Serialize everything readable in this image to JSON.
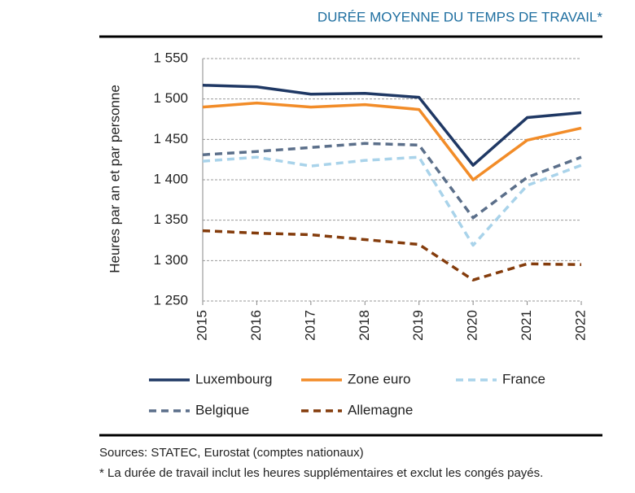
{
  "chart_data": {
    "type": "line",
    "title": "DURÉE MOYENNE DU TEMPS DE TRAVAIL*",
    "y_label": "Heures par an et par personne",
    "categories": [
      "2015",
      "2016",
      "2017",
      "2018",
      "2019",
      "2020",
      "2021",
      "2022"
    ],
    "ylim": [
      1250,
      1550
    ],
    "yticks": [
      {
        "value": 1250,
        "label": "1 250"
      },
      {
        "value": 1300,
        "label": "1 300"
      },
      {
        "value": 1350,
        "label": "1 350"
      },
      {
        "value": 1400,
        "label": "1 400"
      },
      {
        "value": 1450,
        "label": "1 450"
      },
      {
        "value": 1500,
        "label": "1 500"
      },
      {
        "value": 1550,
        "label": "1 550"
      }
    ],
    "grid": true,
    "series": [
      {
        "name": "Luxembourg",
        "color": "#1f3864",
        "dashed": false,
        "values": [
          1517,
          1515,
          1506,
          1507,
          1502,
          1418,
          1477,
          1483
        ]
      },
      {
        "name": "Zone euro",
        "color": "#f28c28",
        "dashed": false,
        "values": [
          1490,
          1495,
          1490,
          1493,
          1487,
          1400,
          1449,
          1464
        ]
      },
      {
        "name": "France",
        "color": "#a9d3ea",
        "dashed": true,
        "values": [
          1423,
          1428,
          1417,
          1424,
          1428,
          1319,
          1393,
          1418
        ]
      },
      {
        "name": "Belgique",
        "color": "#5b6f8a",
        "dashed": true,
        "values": [
          1431,
          1435,
          1440,
          1445,
          1443,
          1353,
          1403,
          1428
        ]
      },
      {
        "name": "Allemagne",
        "color": "#843c0c",
        "dashed": true,
        "values": [
          1337,
          1334,
          1332,
          1326,
          1320,
          1276,
          1296,
          1295
        ]
      }
    ],
    "source": "Sources: STATEC, Eurostat (comptes nationaux)",
    "note": "* La durée de travail inclut les heures supplémentaires et exclut les congés payés."
  }
}
